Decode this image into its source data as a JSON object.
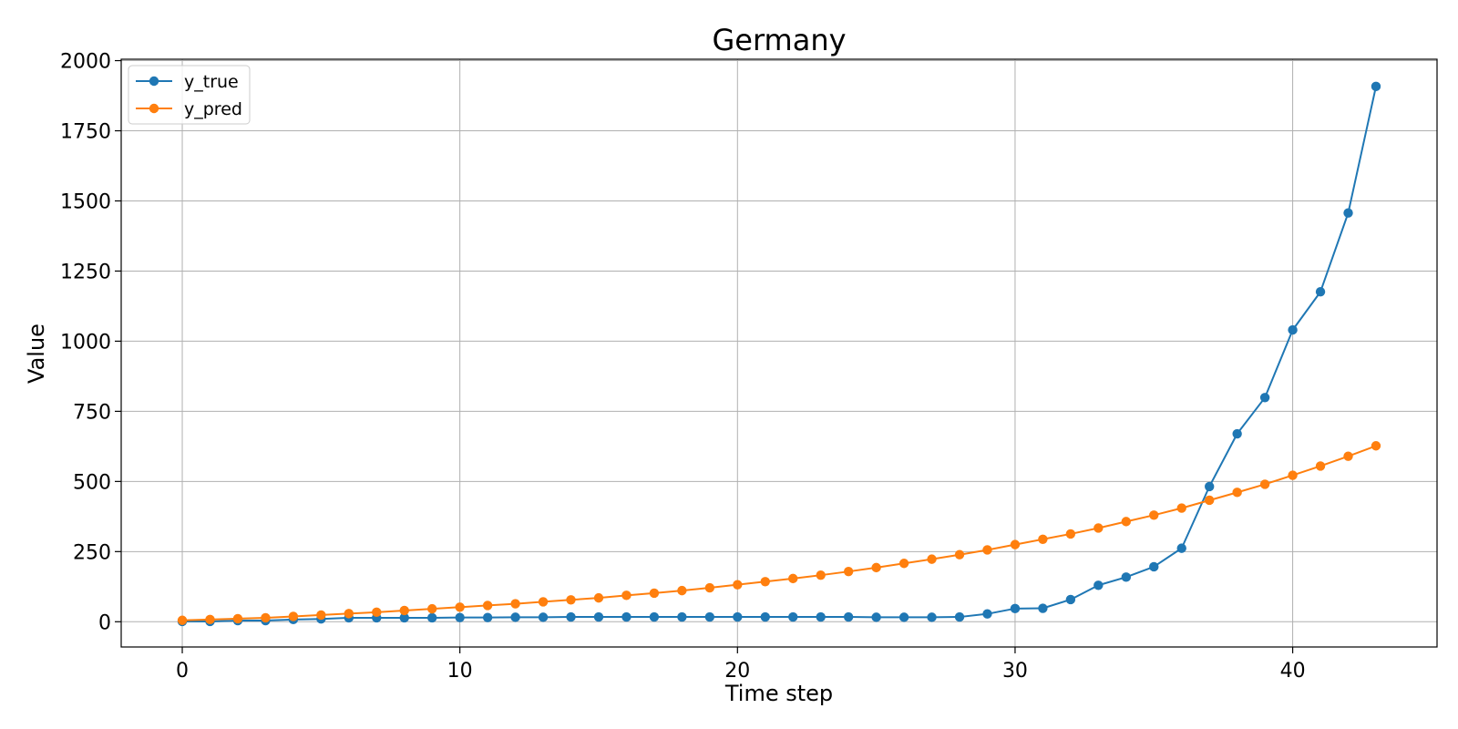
{
  "chart_data": {
    "type": "line",
    "title": "Germany",
    "xlabel": "Time step",
    "ylabel": "Value",
    "xlim": [
      -2.2,
      45.2
    ],
    "ylim": [
      -90,
      2005
    ],
    "xticks": [
      0,
      10,
      20,
      30,
      40
    ],
    "yticks": [
      0,
      250,
      500,
      750,
      1000,
      1250,
      1500,
      1750,
      2000
    ],
    "grid": true,
    "legend_position": "upper-left",
    "x": [
      0,
      1,
      2,
      3,
      4,
      5,
      6,
      7,
      8,
      9,
      10,
      11,
      12,
      13,
      14,
      15,
      16,
      17,
      18,
      19,
      20,
      21,
      22,
      23,
      24,
      25,
      26,
      27,
      28,
      29,
      30,
      31,
      32,
      33,
      34,
      35,
      36,
      37,
      38,
      39,
      40,
      41,
      42,
      43
    ],
    "series": [
      {
        "name": "y_true",
        "color": "#1f77b4",
        "marker": "circle",
        "values": [
          1,
          1,
          4,
          4,
          8,
          10,
          14,
          14,
          14,
          14,
          15,
          15,
          16,
          16,
          17,
          17,
          17,
          17,
          17,
          17,
          17,
          17,
          17,
          17,
          17,
          16,
          16,
          16,
          17,
          28,
          47,
          48,
          79,
          130,
          159,
          196,
          262,
          482,
          670,
          799,
          1040,
          1176,
          1457,
          1908
        ]
      },
      {
        "name": "y_pred",
        "color": "#ff7f0e",
        "marker": "circle",
        "values": [
          5,
          8,
          11,
          14,
          19,
          24,
          29,
          34,
          40,
          46,
          52,
          58,
          64,
          71,
          78,
          85,
          94,
          102,
          111,
          121,
          132,
          143,
          154,
          166,
          179,
          193,
          208,
          223,
          239,
          256,
          275,
          294,
          313,
          334,
          357,
          380,
          405,
          433,
          461,
          490,
          522,
          555,
          590,
          627
        ]
      }
    ]
  }
}
